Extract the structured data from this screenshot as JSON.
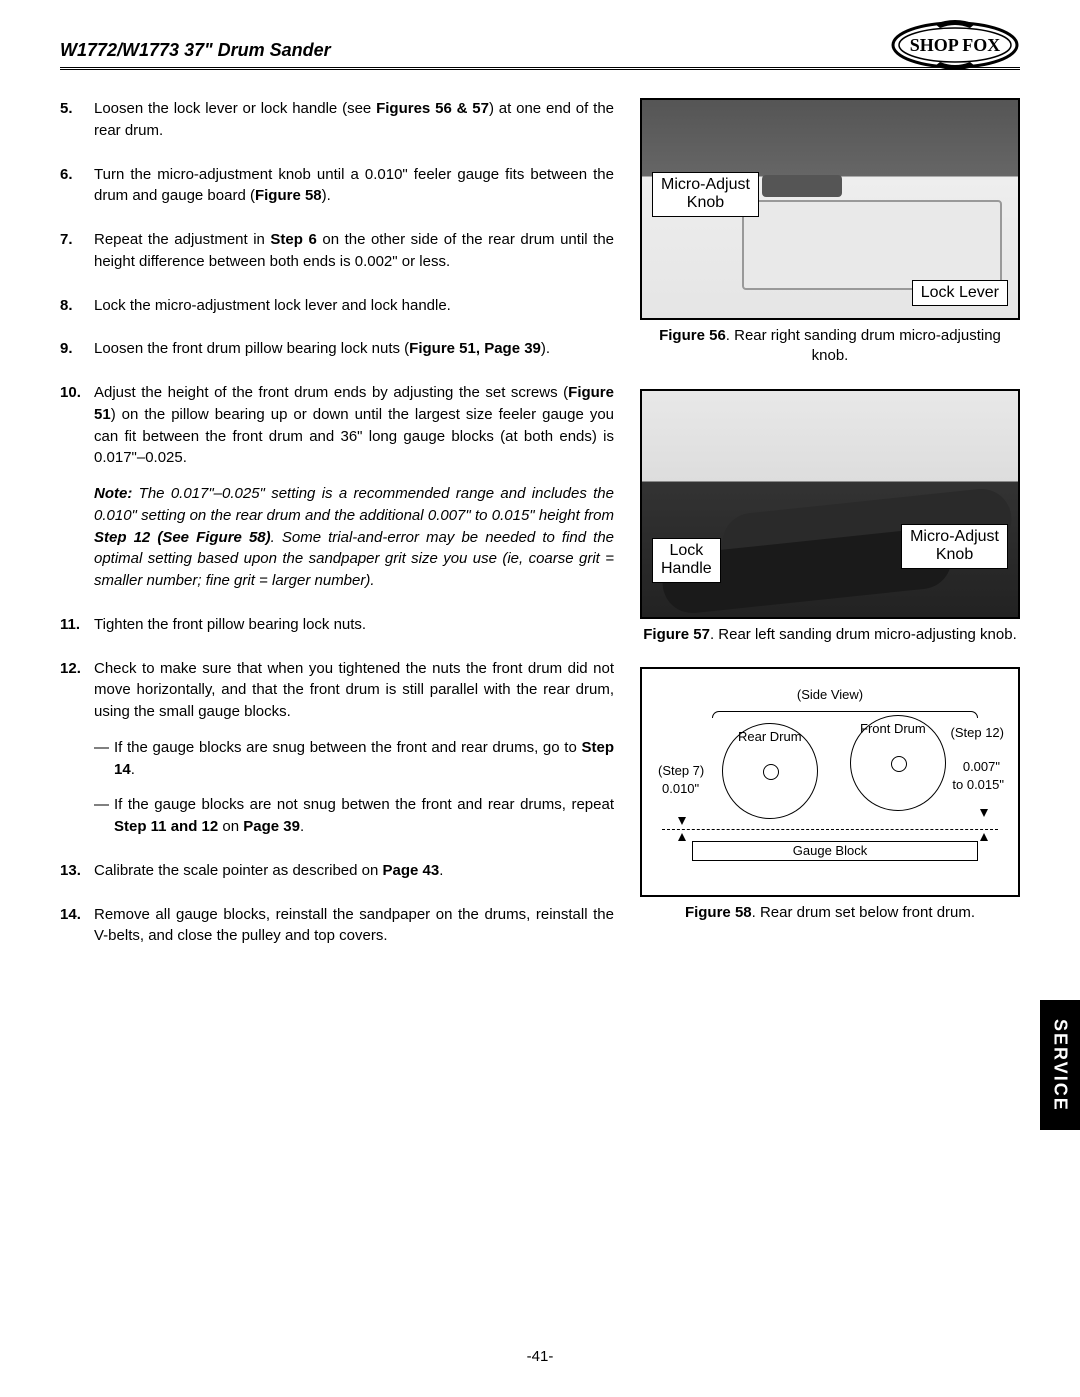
{
  "header": {
    "title": "W1772/W1773 37\" Drum Sander",
    "logo_text": "SHOP FOX"
  },
  "steps": {
    "s5": "Loosen the lock lever or lock handle (see ",
    "s5b": "Figures 56 & 57",
    "s5c": ") at one end of the rear drum.",
    "s6": "Turn the micro-adjustment knob until a 0.010\" feeler gauge fits between the drum and gauge board (",
    "s6b": "Figure 58",
    "s6c": ").",
    "s7": "Repeat the adjustment in ",
    "s7b": "Step 6",
    "s7c": " on the other side of the rear drum until the height difference between both ends is 0.002\" or less.",
    "s8": "Lock the micro-adjustment lock lever and lock handle.",
    "s9": "Loosen the front drum pillow bearing lock nuts (",
    "s9b": "Figure 51, Page 39",
    "s9c": ").",
    "s10": "Adjust the height of the front drum ends by adjusting the set screws (",
    "s10b": "Figure 51",
    "s10c": ") on the pillow bearing up or down until the largest size feeler gauge you can fit between the front drum and 36\" long gauge blocks (at both ends) is 0.017\"–0.025.",
    "note_label": "Note:",
    "note_text": " The 0.017\"–0.025\" setting is a recommended range and includes the 0.010\" setting on the rear drum and the additional 0.007\" to 0.015\" height from ",
    "note_b": "Step 12 (See Figure 58)",
    "note_text2": ". Some trial-and-error may be needed to find the optimal setting based upon the sandpaper grit size you use (ie, coarse grit = smaller number; fine grit = larger number).",
    "s11": "Tighten the front pillow bearing lock nuts.",
    "s12": "Check to make sure that when you tightened the nuts the front drum did not move horizontally, and that the front drum is still parallel with the rear drum, using the small gauge blocks.",
    "s12sub1a": "If the gauge blocks are snug between the front and rear drums, go to ",
    "s12sub1b": "Step 14",
    "s12sub1c": ".",
    "s12sub2a": "If the gauge blocks are not snug betwen the front and rear drums, repeat ",
    "s12sub2b": "Step 11 and 12",
    "s12sub2c": " on ",
    "s12sub2d": "Page 39",
    "s12sub2e": ".",
    "s13": "Calibrate the scale pointer as described on ",
    "s13b": "Page 43",
    "s13c": ".",
    "s14": "Remove all gauge blocks, reinstall the sandpaper on the drums, reinstall the V-belts, and close the pulley and top covers."
  },
  "figures": {
    "f56": {
      "callout1": "Micro-Adjust\nKnob",
      "callout2": "Lock Lever",
      "label": "Figure 56",
      "caption": ". Rear right sanding drum micro-adjusting knob."
    },
    "f57": {
      "callout1": "Lock\nHandle",
      "callout2": "Micro-Adjust\nKnob",
      "label": "Figure 57",
      "caption": ". Rear left sanding drum micro-adjusting knob."
    },
    "f58": {
      "sideview": "(Side View)",
      "rear": "Rear Drum",
      "front": "Front Drum",
      "step7": "(Step 7)",
      "v010": "0.010\"",
      "step12": "(Step 12)",
      "v007": "0.007\"",
      "to015": "to 0.015\"",
      "gauge": "Gauge Block",
      "label": "Figure 58",
      "caption": ". Rear drum set below front drum."
    }
  },
  "tab": "SERVICE",
  "page_number": "-41-",
  "colors": {
    "text": "#000000",
    "background": "#ffffff",
    "tab_bg": "#000000",
    "tab_fg": "#ffffff"
  }
}
